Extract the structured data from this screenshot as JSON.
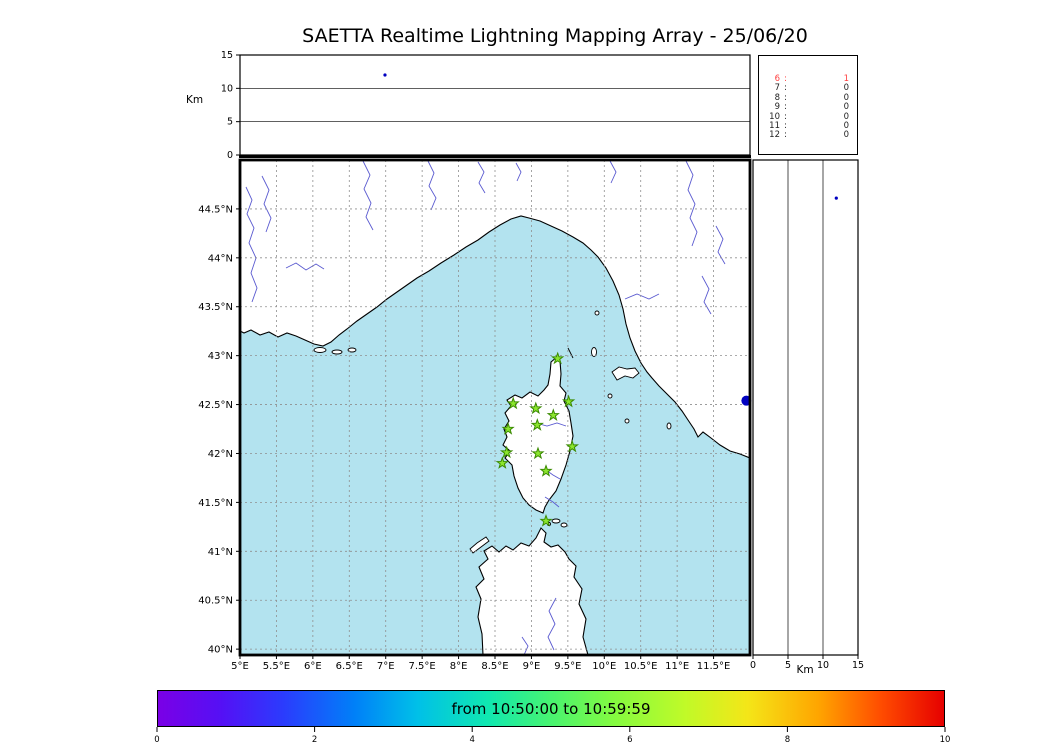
{
  "title": "SAETTA Realtime Lightning Mapping Array - 25/06/20",
  "palette": {
    "sea": "#b3e3ef",
    "land": "#ffffff",
    "coast": "#000000",
    "river": "#5a5ad0",
    "grid": "#8f8f8f",
    "station_fill": "#8ce62e",
    "station_edge": "#3a8a00",
    "source": "#0000c0",
    "highlight_red": "#ff4040"
  },
  "chart_data": [
    {
      "id": "alt_lon_panel",
      "type": "scatter",
      "ylabel": "Km",
      "ylim": [
        0,
        15
      ],
      "yticks": [
        0,
        5,
        10,
        15
      ],
      "grid_y": [
        5,
        10
      ],
      "xlim": [
        5,
        12
      ],
      "points": [
        {
          "lon": 6.99,
          "alt": 12.0
        }
      ]
    },
    {
      "id": "station_counts",
      "type": "table",
      "rows": [
        {
          "station": "6",
          "count": 1,
          "highlight": true
        },
        {
          "station": "7",
          "count": 0,
          "highlight": false
        },
        {
          "station": "8",
          "count": 0,
          "highlight": false
        },
        {
          "station": "9",
          "count": 0,
          "highlight": false
        },
        {
          "station": "10",
          "count": 0,
          "highlight": false
        },
        {
          "station": "11",
          "count": 0,
          "highlight": false
        },
        {
          "station": "12",
          "count": 0,
          "highlight": false
        }
      ]
    },
    {
      "id": "map_panel",
      "type": "scatter",
      "xlim": [
        5,
        12
      ],
      "ylim": [
        39.94,
        45.0
      ],
      "xtick_values": [
        5,
        5.5,
        6,
        6.5,
        7,
        7.5,
        8,
        8.5,
        9,
        9.5,
        10,
        10.5,
        11,
        11.5
      ],
      "xtick_labels": [
        "5°E",
        "5.5°E",
        "6°E",
        "6.5°E",
        "7°E",
        "7.5°E",
        "8°E",
        "8.5°E",
        "9°E",
        "9.5°E",
        "10°E",
        "10.5°E",
        "11°E",
        "11.5°E"
      ],
      "ytick_values": [
        40,
        40.5,
        41,
        41.5,
        42,
        42.5,
        43,
        43.5,
        44,
        44.5
      ],
      "ytick_labels": [
        "40°N",
        "40.5°N",
        "41°N",
        "41.5°N",
        "42°N",
        "42.5°N",
        "43°N",
        "43.5°N",
        "44°N",
        "44.5°N"
      ],
      "stations": [
        [
          9.36,
          42.97
        ],
        [
          8.75,
          42.51
        ],
        [
          9.06,
          42.46
        ],
        [
          9.51,
          42.53
        ],
        [
          9.3,
          42.39
        ],
        [
          8.68,
          42.25
        ],
        [
          9.08,
          42.29
        ],
        [
          9.56,
          42.07
        ],
        [
          8.66,
          42.01
        ],
        [
          8.6,
          41.9
        ],
        [
          9.09,
          42.0
        ],
        [
          9.2,
          41.82
        ],
        [
          9.2,
          41.31
        ]
      ],
      "sources": [
        {
          "lon": 11.95,
          "lat": 42.54
        }
      ]
    },
    {
      "id": "alt_lat_panel",
      "type": "scatter",
      "xlabel": "Km",
      "xlim": [
        0,
        15
      ],
      "xticks": [
        0,
        5,
        10,
        15
      ],
      "grid_x": [
        5,
        10
      ],
      "points": [
        {
          "alt": 11.9,
          "lat": 44.61
        }
      ]
    },
    {
      "id": "colorbar",
      "type": "colorbar",
      "label": "from 10:50:00 to 10:59:59",
      "lim": [
        0,
        10
      ],
      "ticks": [
        0,
        2,
        4,
        6,
        8,
        10
      ],
      "gradient": [
        {
          "stop": 0,
          "color": "#7a00e6"
        },
        {
          "stop": 8,
          "color": "#5510f5"
        },
        {
          "stop": 16,
          "color": "#2b3cfd"
        },
        {
          "stop": 25,
          "color": "#0080f8"
        },
        {
          "stop": 33,
          "color": "#00c0e8"
        },
        {
          "stop": 42,
          "color": "#10e8b0"
        },
        {
          "stop": 50,
          "color": "#48f470"
        },
        {
          "stop": 58,
          "color": "#84fa40"
        },
        {
          "stop": 67,
          "color": "#c0fa28"
        },
        {
          "stop": 75,
          "color": "#f4e618"
        },
        {
          "stop": 84,
          "color": "#ffa500"
        },
        {
          "stop": 92,
          "color": "#ff4c00"
        },
        {
          "stop": 100,
          "color": "#e60000"
        }
      ]
    }
  ]
}
